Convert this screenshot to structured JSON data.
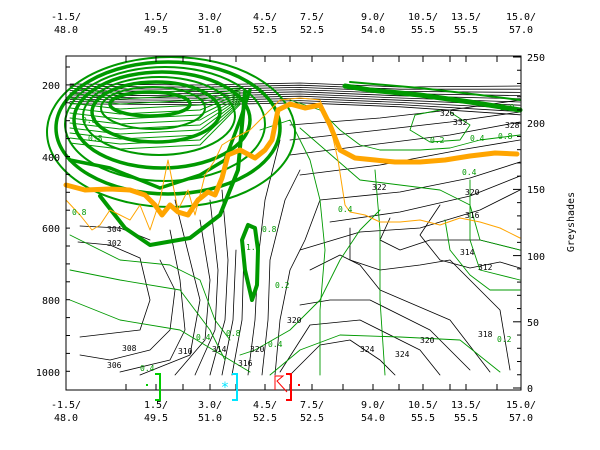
{
  "chart_data": {
    "type": "contour",
    "title": "",
    "x_tick_labels": [
      "-1.5/\n48.0",
      "1.5/\n49.5",
      "3.0/\n51.0",
      "4.5/\n52.5",
      "7.5/\n52.5",
      "9.0/\n54.0",
      "10.5/\n55.5",
      "13.5/\n55.5",
      "15.0/\n57.0"
    ],
    "x_ticks_top": [
      "-1.5/",
      "1.5/",
      "3.0/",
      "4.5/",
      "7.5/",
      "9.0/",
      "10.5/",
      "13.5/",
      "15.0/"
    ],
    "x_ticks_bottom": [
      "48.0",
      "49.5",
      "51.0",
      "52.5",
      "52.5",
      "54.0",
      "55.5",
      "55.5",
      "57.0"
    ],
    "y_left": {
      "label": "",
      "ticks": [
        "200",
        "400",
        "600",
        "800",
        "1000"
      ],
      "values": [
        200,
        400,
        600,
        800,
        1000
      ],
      "ylim": [
        1050,
        100
      ]
    },
    "y_right": {
      "label": "Greyshades",
      "ticks": [
        "250",
        "200",
        "150",
        "100",
        "50",
        "0"
      ],
      "values": [
        250,
        200,
        150,
        100,
        50,
        0
      ],
      "ylim": [
        0,
        250
      ]
    },
    "theta_contour_labels": [
      "304",
      "302",
      "306",
      "308",
      "310",
      "314",
      "316",
      "320",
      "320",
      "324",
      "324",
      "320",
      "318",
      "312",
      "314",
      "316",
      "320",
      "322",
      "328",
      "332",
      "326"
    ],
    "pv_contour_labels": [
      "0.8",
      "0.8",
      "0.4",
      "0.4",
      "0.8",
      "0.4",
      "0.2",
      "0.8",
      "1.0",
      "0.4",
      "0.8",
      "0.2",
      "0.4",
      "0.8",
      "0.4",
      "0.2",
      "2.0"
    ],
    "series": [
      {
        "name": "theta",
        "color": "#000000"
      },
      {
        "name": "potential vorticity",
        "color": "#009900"
      },
      {
        "name": "greyshade thick",
        "color": "#ffa500"
      },
      {
        "name": "greyshade thin",
        "color": "#ffa500"
      }
    ],
    "markers": [
      {
        "name": "green bracket",
        "color": "#00cc00"
      },
      {
        "name": "cyan asterisk",
        "color": "#00e5ff"
      },
      {
        "name": "cyan bracket",
        "color": "#00e5ff"
      },
      {
        "name": "red symbol",
        "color": "#ff0000"
      },
      {
        "name": "red bracket",
        "color": "#ff0000"
      }
    ]
  }
}
